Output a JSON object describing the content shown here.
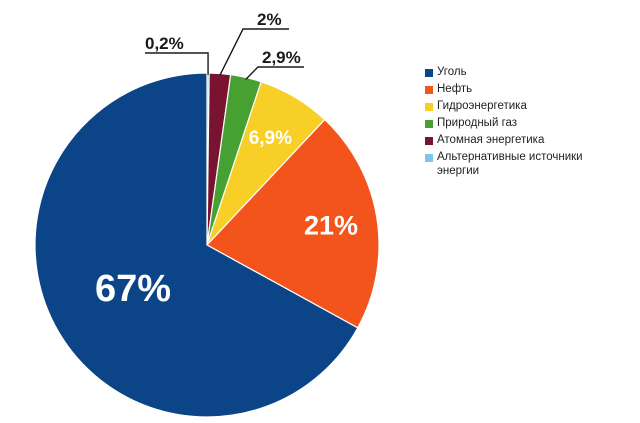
{
  "chart_data": {
    "type": "pie",
    "title": "",
    "legend_position": "right",
    "slices": [
      {
        "name": "Уголь",
        "value": 67,
        "label": "67%",
        "color": "#0c4587"
      },
      {
        "name": "Нефть",
        "value": 21,
        "label": "21%",
        "color": "#f2541b"
      },
      {
        "name": "Гидроэнергетика",
        "value": 6.9,
        "label": "6,9%",
        "color": "#f8cf26"
      },
      {
        "name": "Природный газ",
        "value": 2.9,
        "label": "2,9%",
        "color": "#47a032"
      },
      {
        "name": "Атомная энергетика",
        "value": 2,
        "label": "2%",
        "color": "#7a1330"
      },
      {
        "name": "Альтернативные источники энергии",
        "value": 0.2,
        "label": "0,2%",
        "color": "#7fc6ec"
      }
    ]
  }
}
